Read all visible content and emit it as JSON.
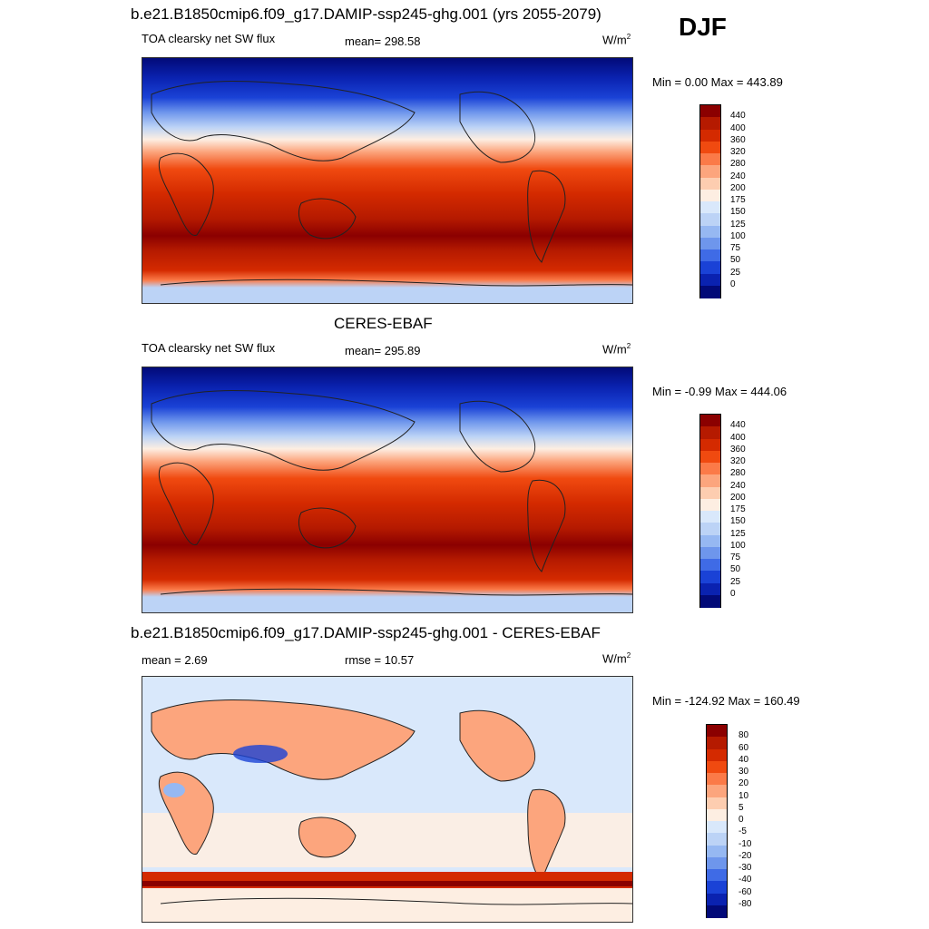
{
  "season": "DJF",
  "panels": [
    {
      "title": "b.e21.B1850cmip6.f09_g17.DAMIP-ssp245-ghg.001 (yrs 2055-2079)",
      "left_label": "TOA clearsky net SW flux",
      "center_label": "mean= 298.58",
      "units": "W/m",
      "units_sup": "2",
      "minmax": "Min =   0.00 Max = 443.89"
    },
    {
      "title": "CERES-EBAF",
      "left_label": "TOA clearsky net SW flux",
      "center_label": "mean= 295.89",
      "units": "W/m",
      "units_sup": "2",
      "minmax": "Min =  -0.99 Max = 444.06"
    },
    {
      "title": "b.e21.B1850cmip6.f09_g17.DAMIP-ssp245-ghg.001 - CERES-EBAF",
      "left_label": "mean =   2.69",
      "center_label": "rmse =  10.57",
      "units": "W/m",
      "units_sup": "2",
      "minmax": "Min = -124.92 Max = 160.49"
    }
  ],
  "colorbars": {
    "abs": {
      "labels": [
        "440",
        "400",
        "360",
        "320",
        "280",
        "240",
        "200",
        "175",
        "150",
        "125",
        "100",
        "75",
        "50",
        "25",
        "0"
      ],
      "colors": [
        "#8b0000",
        "#b51a00",
        "#d42a00",
        "#f04a10",
        "#fb7a48",
        "#fca57d",
        "#fdcdb0",
        "#fdeee2",
        "#d9e8fb",
        "#bcd3f6",
        "#96b8f2",
        "#6e96ec",
        "#3f6be6",
        "#1a42d6",
        "#0a22b0",
        "#020a78"
      ]
    },
    "diff": {
      "labels": [
        "80",
        "60",
        "40",
        "30",
        "20",
        "10",
        "5",
        "0",
        "-5",
        "-10",
        "-20",
        "-30",
        "-40",
        "-60",
        "-80"
      ],
      "colors": [
        "#8b0000",
        "#b51a00",
        "#d42a00",
        "#f04a10",
        "#fb7a48",
        "#fca57d",
        "#fdcdb0",
        "#fdeee2",
        "#d9e8fb",
        "#bcd3f6",
        "#96b8f2",
        "#6e96ec",
        "#3f6be6",
        "#1a42d6",
        "#0a22b0",
        "#020a78"
      ]
    }
  }
}
